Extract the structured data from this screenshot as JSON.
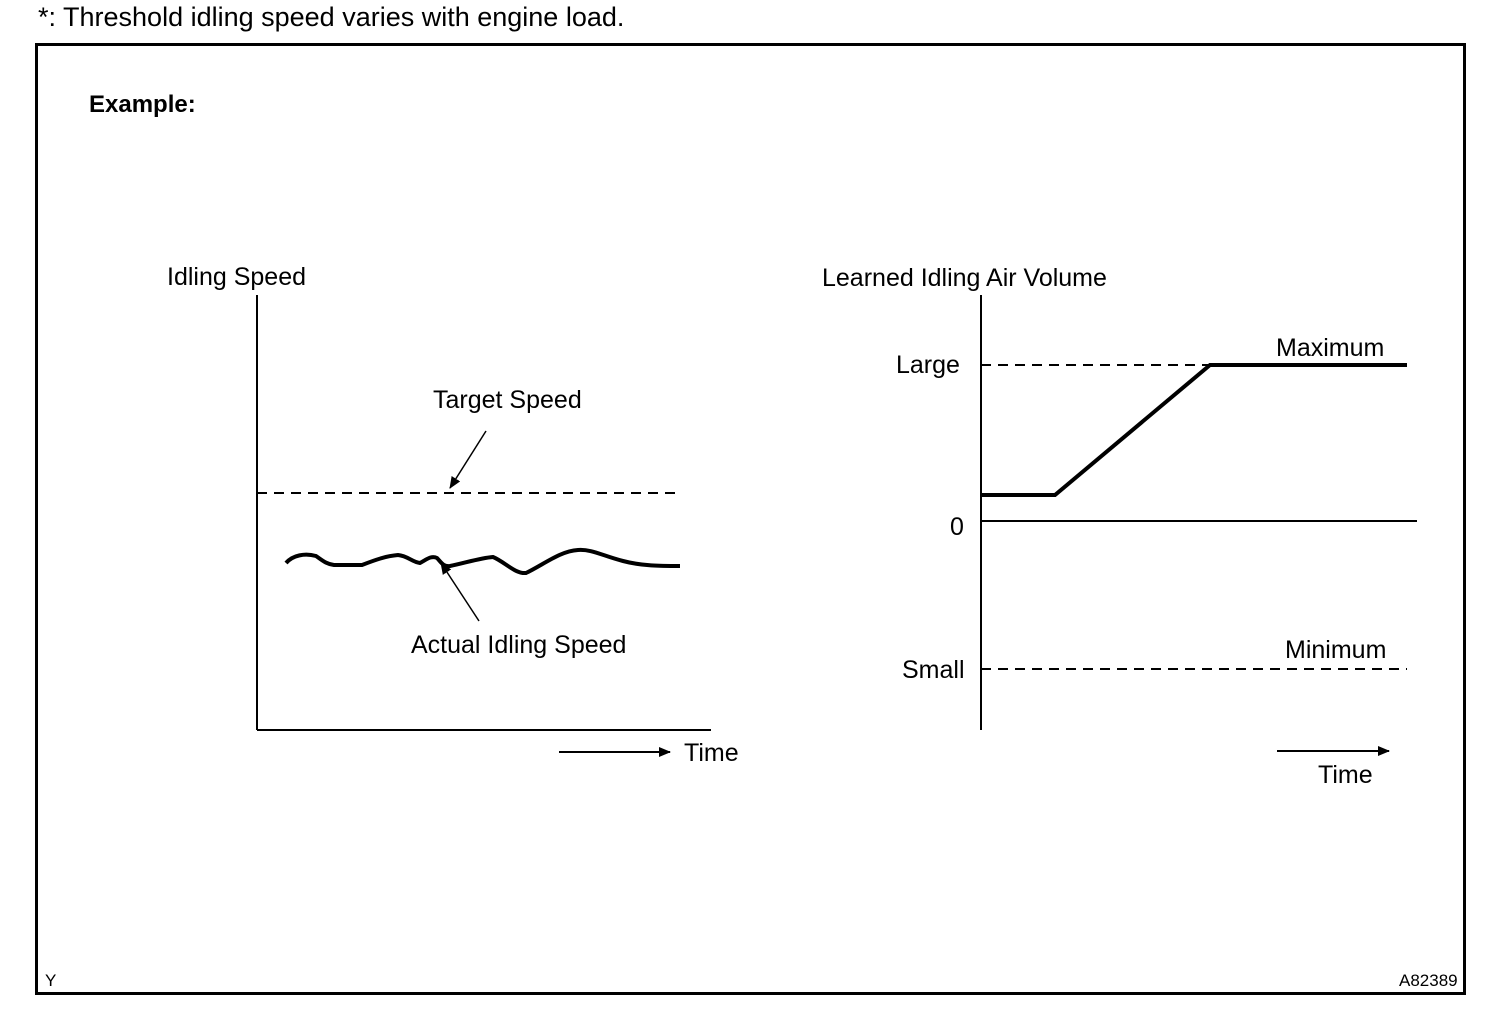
{
  "note": "*: Threshold idling speed varies with engine load.",
  "example_label": "Example:",
  "left_chart": {
    "y_label": "Idling Speed",
    "target_label": "Target Speed",
    "actual_label": "Actual Idling Speed",
    "x_label": "Time"
  },
  "right_chart": {
    "y_label": "Learned Idling Air Volume",
    "large_label": "Large",
    "zero_label": "0",
    "small_label": "Small",
    "maximum_label": "Maximum",
    "minimum_label": "Minimum",
    "x_label": "Time"
  },
  "corner_left": "Y",
  "corner_right": "A82389"
}
